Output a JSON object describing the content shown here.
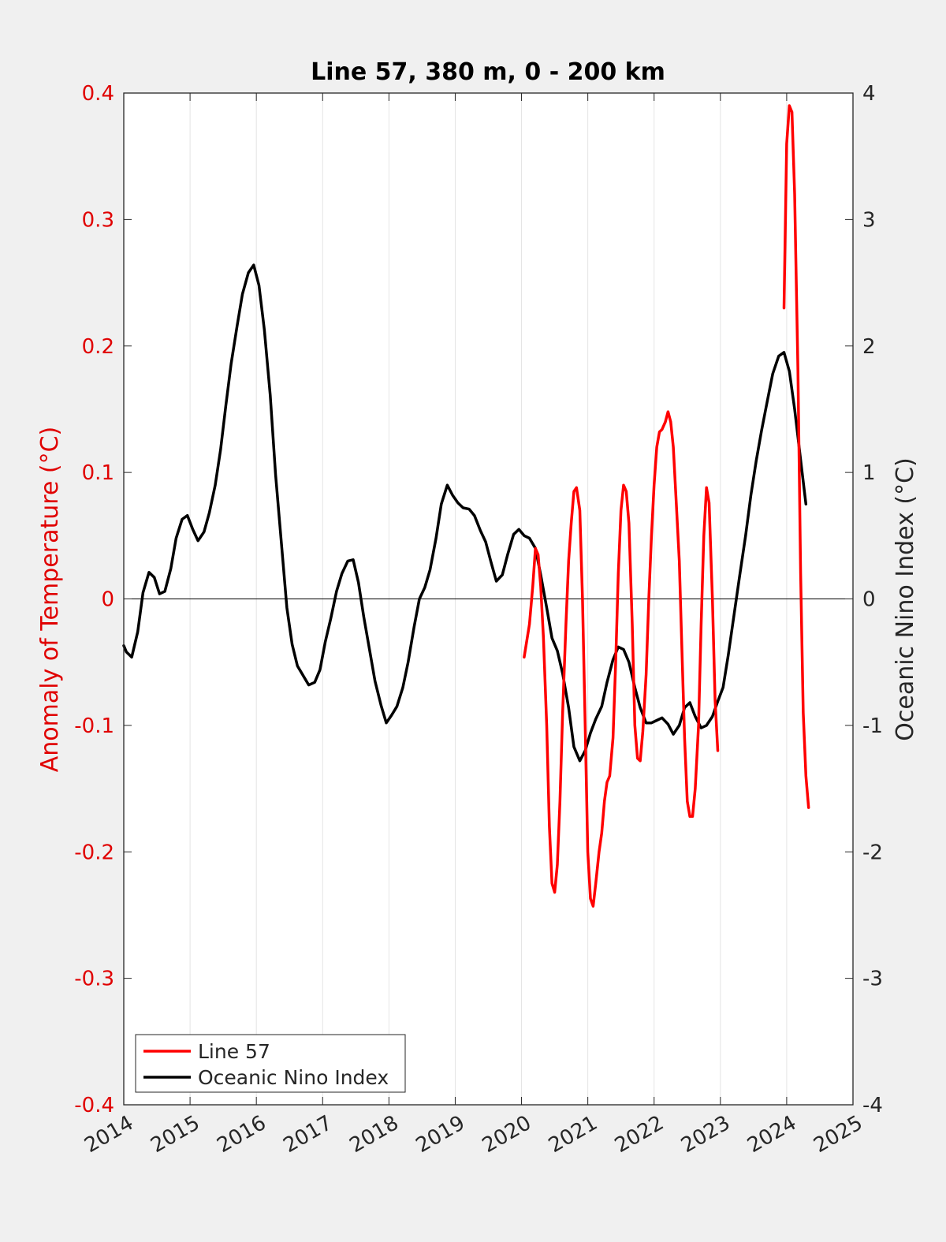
{
  "chart_data": {
    "type": "line",
    "title": "Line 57, 380 m, 0 - 200 km",
    "xlabel": "",
    "ylabel_left": "Anomaly of Temperature (°C)",
    "ylabel_right": "Oceanic Nino Index (°C)",
    "xlim": [
      2014,
      2025
    ],
    "ylim_left": [
      -0.4,
      0.4
    ],
    "ylim_right": [
      -4,
      4
    ],
    "x_ticks": [
      "2014",
      "2015",
      "2016",
      "2017",
      "2018",
      "2019",
      "2020",
      "2021",
      "2022",
      "2023",
      "2024",
      "2025"
    ],
    "y_ticks_left": [
      "0.4",
      "0.3",
      "0.2",
      "0.1",
      "0",
      "-0.1",
      "-0.2",
      "-0.3",
      "-0.4"
    ],
    "y_ticks_right": [
      "4",
      "3",
      "2",
      "1",
      "0",
      "-1",
      "-2",
      "-3",
      "-4"
    ],
    "grid": "vertical gridlines at each year",
    "legend_position": "bottom-left",
    "colors": {
      "line57": "#ff0000",
      "oni": "#000000",
      "left_axis": "#e00000"
    },
    "series": [
      {
        "name": "Line 57",
        "axis": "left",
        "segments": [
          [
            [
              2020.04,
              -0.046
            ],
            [
              2020.12,
              -0.02
            ],
            [
              2020.17,
              0.01
            ],
            [
              2020.21,
              0.04
            ],
            [
              2020.25,
              0.035
            ],
            [
              2020.29,
              0.01
            ],
            [
              2020.33,
              -0.03
            ],
            [
              2020.38,
              -0.1
            ],
            [
              2020.42,
              -0.18
            ],
            [
              2020.46,
              -0.225
            ],
            [
              2020.5,
              -0.232
            ],
            [
              2020.54,
              -0.21
            ],
            [
              2020.58,
              -0.16
            ],
            [
              2020.62,
              -0.09
            ],
            [
              2020.67,
              -0.02
            ],
            [
              2020.71,
              0.03
            ],
            [
              2020.75,
              0.06
            ],
            [
              2020.79,
              0.085
            ],
            [
              2020.83,
              0.088
            ],
            [
              2020.88,
              0.07
            ],
            [
              2020.92,
              0.0
            ],
            [
              2020.96,
              -0.1
            ],
            [
              2021.0,
              -0.2
            ],
            [
              2021.04,
              -0.237
            ],
            [
              2021.08,
              -0.243
            ],
            [
              2021.12,
              -0.225
            ],
            [
              2021.17,
              -0.2
            ],
            [
              2021.21,
              -0.185
            ],
            [
              2021.25,
              -0.16
            ],
            [
              2021.29,
              -0.145
            ],
            [
              2021.33,
              -0.14
            ],
            [
              2021.38,
              -0.11
            ],
            [
              2021.42,
              -0.05
            ],
            [
              2021.46,
              0.02
            ],
            [
              2021.5,
              0.07
            ],
            [
              2021.54,
              0.09
            ],
            [
              2021.58,
              0.085
            ],
            [
              2021.62,
              0.06
            ],
            [
              2021.67,
              -0.02
            ],
            [
              2021.71,
              -0.1
            ],
            [
              2021.75,
              -0.126
            ],
            [
              2021.79,
              -0.128
            ],
            [
              2021.83,
              -0.105
            ],
            [
              2021.88,
              -0.06
            ],
            [
              2021.92,
              0.0
            ],
            [
              2021.96,
              0.05
            ],
            [
              2022.0,
              0.09
            ],
            [
              2022.04,
              0.12
            ],
            [
              2022.08,
              0.132
            ],
            [
              2022.12,
              0.134
            ],
            [
              2022.17,
              0.14
            ],
            [
              2022.21,
              0.148
            ],
            [
              2022.25,
              0.14
            ],
            [
              2022.29,
              0.12
            ],
            [
              2022.33,
              0.08
            ],
            [
              2022.38,
              0.03
            ],
            [
              2022.42,
              -0.04
            ],
            [
              2022.46,
              -0.11
            ],
            [
              2022.5,
              -0.16
            ],
            [
              2022.54,
              -0.172
            ],
            [
              2022.58,
              -0.172
            ],
            [
              2022.62,
              -0.15
            ],
            [
              2022.67,
              -0.1
            ],
            [
              2022.71,
              -0.02
            ],
            [
              2022.75,
              0.05
            ],
            [
              2022.79,
              0.088
            ],
            [
              2022.83,
              0.076
            ],
            [
              2022.88,
              0.0
            ],
            [
              2022.92,
              -0.08
            ],
            [
              2022.96,
              -0.12
            ]
          ],
          [
            [
              2023.96,
              0.23
            ],
            [
              2024.0,
              0.36
            ],
            [
              2024.04,
              0.39
            ],
            [
              2024.08,
              0.385
            ],
            [
              2024.12,
              0.32
            ],
            [
              2024.17,
              0.18
            ],
            [
              2024.21,
              0.02
            ],
            [
              2024.25,
              -0.09
            ],
            [
              2024.29,
              -0.14
            ],
            [
              2024.33,
              -0.165
            ]
          ]
        ]
      },
      {
        "name": "Oceanic Nino Index",
        "axis": "right",
        "segments": [
          [
            [
              2014.0,
              -0.37
            ],
            [
              2014.04,
              -0.42
            ],
            [
              2014.12,
              -0.46
            ],
            [
              2014.21,
              -0.26
            ],
            [
              2014.29,
              0.05
            ],
            [
              2014.38,
              0.21
            ],
            [
              2014.46,
              0.17
            ],
            [
              2014.54,
              0.04
            ],
            [
              2014.62,
              0.06
            ],
            [
              2014.71,
              0.24
            ],
            [
              2014.79,
              0.48
            ],
            [
              2014.88,
              0.63
            ],
            [
              2014.96,
              0.66
            ],
            [
              2015.04,
              0.55
            ],
            [
              2015.12,
              0.46
            ],
            [
              2015.21,
              0.53
            ],
            [
              2015.29,
              0.68
            ],
            [
              2015.38,
              0.9
            ],
            [
              2015.46,
              1.18
            ],
            [
              2015.54,
              1.53
            ],
            [
              2015.62,
              1.86
            ],
            [
              2015.71,
              2.16
            ],
            [
              2015.79,
              2.41
            ],
            [
              2015.88,
              2.58
            ],
            [
              2015.96,
              2.64
            ],
            [
              2016.04,
              2.48
            ],
            [
              2016.12,
              2.13
            ],
            [
              2016.21,
              1.61
            ],
            [
              2016.29,
              0.98
            ],
            [
              2016.38,
              0.43
            ],
            [
              2016.46,
              -0.07
            ],
            [
              2016.54,
              -0.36
            ],
            [
              2016.62,
              -0.53
            ],
            [
              2016.71,
              -0.61
            ],
            [
              2016.79,
              -0.68
            ],
            [
              2016.88,
              -0.66
            ],
            [
              2016.96,
              -0.56
            ],
            [
              2017.04,
              -0.34
            ],
            [
              2017.12,
              -0.16
            ],
            [
              2017.21,
              0.06
            ],
            [
              2017.29,
              0.2
            ],
            [
              2017.38,
              0.3
            ],
            [
              2017.46,
              0.31
            ],
            [
              2017.54,
              0.13
            ],
            [
              2017.62,
              -0.14
            ],
            [
              2017.71,
              -0.41
            ],
            [
              2017.79,
              -0.65
            ],
            [
              2017.88,
              -0.84
            ],
            [
              2017.96,
              -0.98
            ],
            [
              2018.04,
              -0.92
            ],
            [
              2018.12,
              -0.85
            ],
            [
              2018.21,
              -0.7
            ],
            [
              2018.29,
              -0.5
            ],
            [
              2018.38,
              -0.22
            ],
            [
              2018.46,
              0.0
            ],
            [
              2018.54,
              0.09
            ],
            [
              2018.62,
              0.23
            ],
            [
              2018.71,
              0.48
            ],
            [
              2018.79,
              0.75
            ],
            [
              2018.88,
              0.9
            ],
            [
              2018.96,
              0.82
            ],
            [
              2019.04,
              0.76
            ],
            [
              2019.12,
              0.72
            ],
            [
              2019.21,
              0.71
            ],
            [
              2019.29,
              0.66
            ],
            [
              2019.38,
              0.54
            ],
            [
              2019.46,
              0.45
            ],
            [
              2019.54,
              0.29
            ],
            [
              2019.62,
              0.14
            ],
            [
              2019.71,
              0.19
            ],
            [
              2019.79,
              0.35
            ],
            [
              2019.88,
              0.51
            ],
            [
              2019.96,
              0.55
            ],
            [
              2020.04,
              0.5
            ],
            [
              2020.12,
              0.48
            ],
            [
              2020.21,
              0.4
            ],
            [
              2020.29,
              0.19
            ],
            [
              2020.38,
              -0.07
            ],
            [
              2020.46,
              -0.31
            ],
            [
              2020.54,
              -0.41
            ],
            [
              2020.62,
              -0.59
            ],
            [
              2020.71,
              -0.86
            ],
            [
              2020.79,
              -1.17
            ],
            [
              2020.88,
              -1.28
            ],
            [
              2020.96,
              -1.2
            ],
            [
              2021.04,
              -1.06
            ],
            [
              2021.12,
              -0.95
            ],
            [
              2021.21,
              -0.85
            ],
            [
              2021.29,
              -0.66
            ],
            [
              2021.38,
              -0.48
            ],
            [
              2021.46,
              -0.38
            ],
            [
              2021.54,
              -0.4
            ],
            [
              2021.62,
              -0.5
            ],
            [
              2021.71,
              -0.7
            ],
            [
              2021.79,
              -0.86
            ],
            [
              2021.88,
              -0.98
            ],
            [
              2021.96,
              -0.98
            ],
            [
              2022.04,
              -0.96
            ],
            [
              2022.12,
              -0.94
            ],
            [
              2022.21,
              -0.99
            ],
            [
              2022.29,
              -1.07
            ],
            [
              2022.38,
              -1.0
            ],
            [
              2022.46,
              -0.86
            ],
            [
              2022.54,
              -0.82
            ],
            [
              2022.62,
              -0.93
            ],
            [
              2022.71,
              -1.02
            ],
            [
              2022.79,
              -1.0
            ],
            [
              2022.88,
              -0.93
            ],
            [
              2022.96,
              -0.81
            ],
            [
              2023.04,
              -0.7
            ],
            [
              2023.12,
              -0.44
            ],
            [
              2023.21,
              -0.11
            ],
            [
              2023.29,
              0.18
            ],
            [
              2023.38,
              0.5
            ],
            [
              2023.46,
              0.82
            ],
            [
              2023.54,
              1.09
            ],
            [
              2023.62,
              1.33
            ],
            [
              2023.71,
              1.57
            ],
            [
              2023.79,
              1.78
            ],
            [
              2023.88,
              1.92
            ],
            [
              2023.96,
              1.95
            ],
            [
              2024.04,
              1.8
            ],
            [
              2024.12,
              1.5
            ],
            [
              2024.21,
              1.1
            ],
            [
              2024.29,
              0.75
            ]
          ]
        ]
      }
    ]
  },
  "legend": {
    "entries": [
      {
        "label": "Line 57",
        "color": "#ff0000"
      },
      {
        "label": "Oceanic Nino Index",
        "color": "#000000"
      }
    ]
  }
}
